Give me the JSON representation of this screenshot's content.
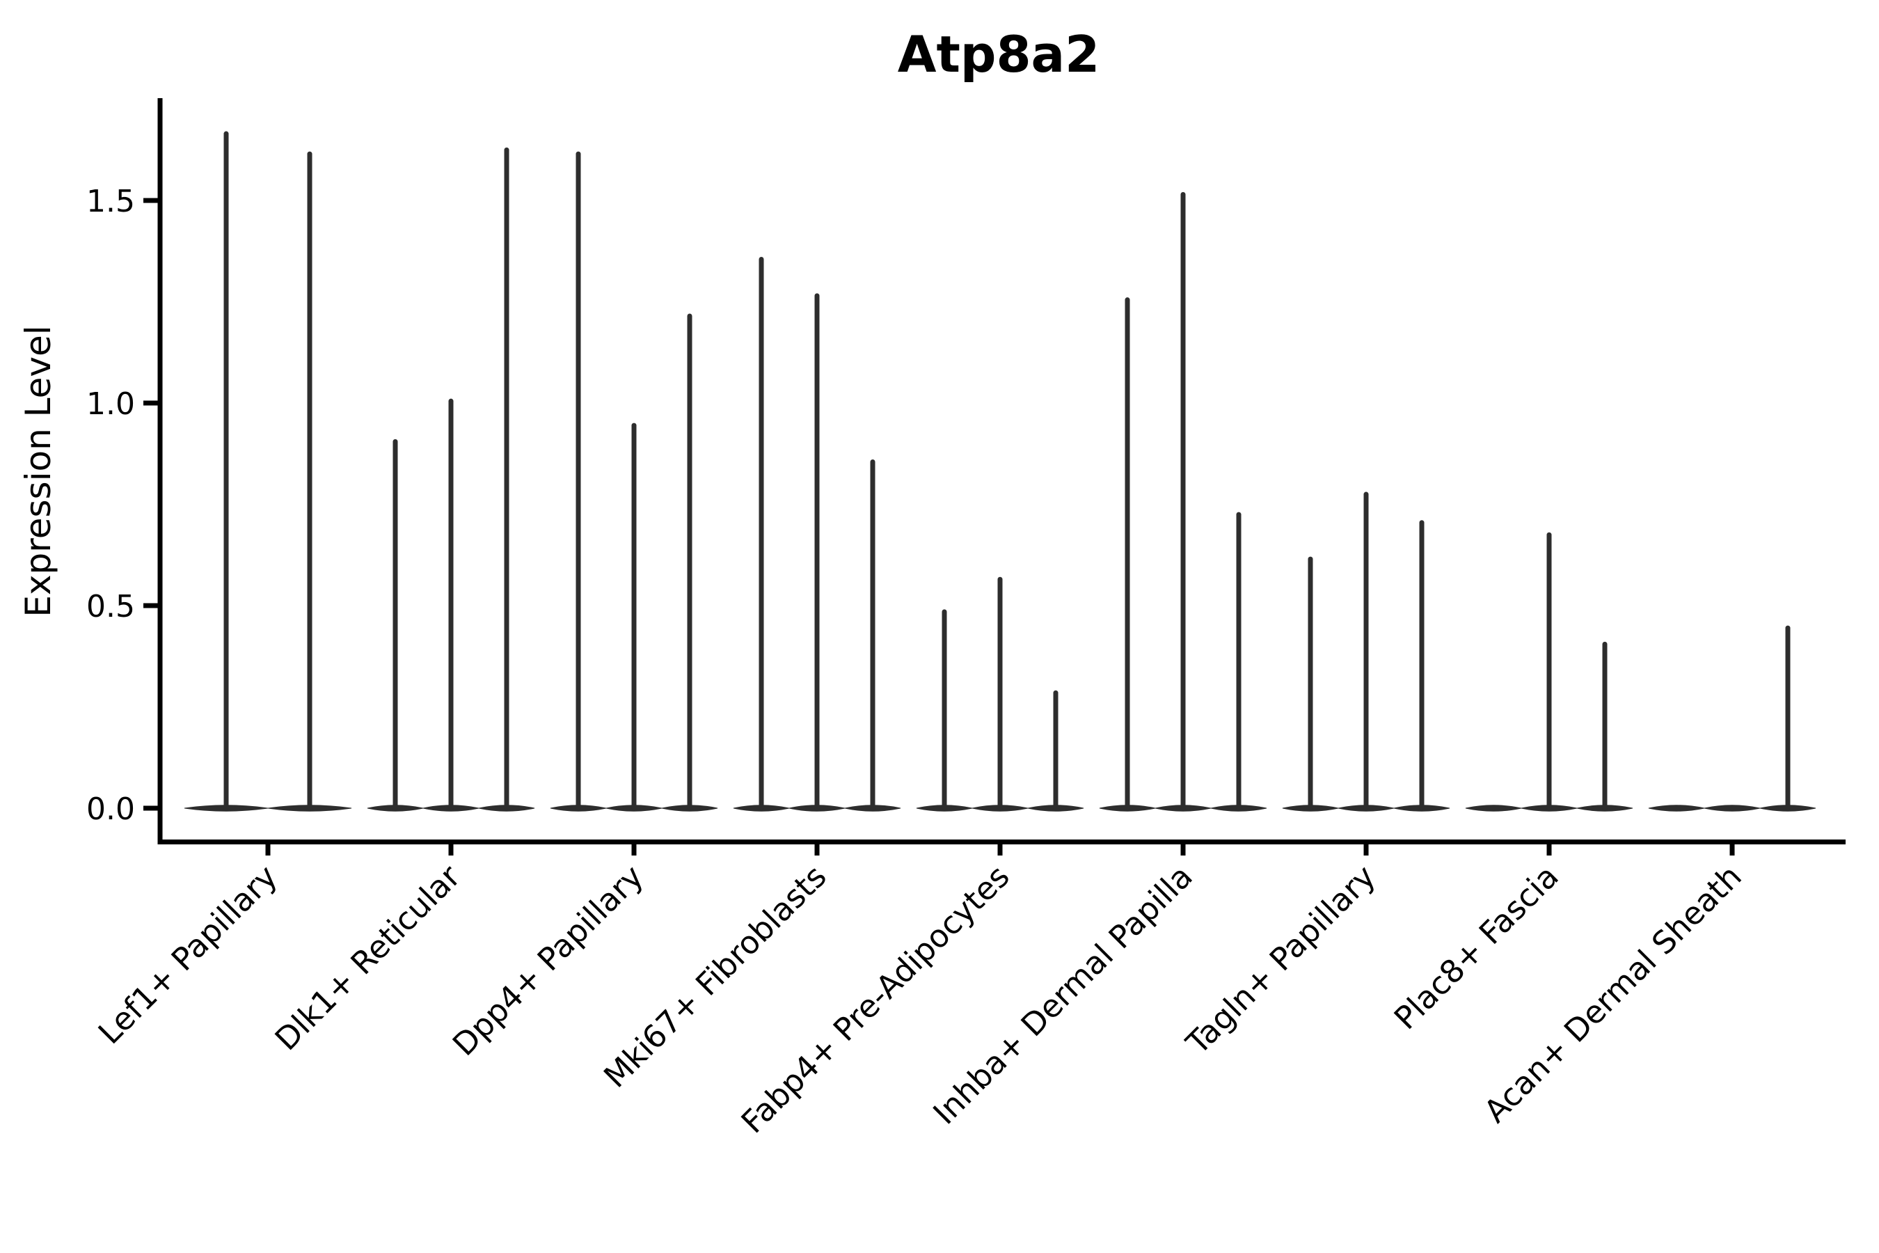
{
  "figure": {
    "title": "Atp8a2",
    "ylabel": "Expression Level"
  },
  "chart_data": {
    "type": "violin",
    "title": "Atp8a2",
    "xlabel": "",
    "ylabel": "Expression Level",
    "ylim": [
      -0.06,
      1.78
    ],
    "ytick_labels": [
      "0.0",
      "0.5",
      "1.0",
      "1.5"
    ],
    "ytick_values": [
      0.0,
      0.5,
      1.0,
      1.5
    ],
    "grid": false,
    "legend": "none",
    "ink_color": "#2d2d2d",
    "axis_color": "#000000",
    "background_color": "#ffffff",
    "categories": [
      "Lef1+ Papillary",
      "Dlk1+ Reticular",
      "Dpp4+ Papillary",
      "Mki67+ Fibroblasts",
      "Fabp4+ Pre-Adipocytes",
      "Inhba+ Dermal Papilla",
      "Tagln+ Papillary",
      "Plac8+ Fascia",
      "Acan+ Dermal Sheath"
    ],
    "groups": [
      {
        "category": "Lef1+ Papillary",
        "violin_maxima": [
          1.67,
          1.62
        ]
      },
      {
        "category": "Dlk1+ Reticular",
        "violin_maxima": [
          0.91,
          1.01,
          1.63
        ]
      },
      {
        "category": "Dpp4+ Papillary",
        "violin_maxima": [
          1.62,
          0.95,
          1.22
        ]
      },
      {
        "category": "Mki67+ Fibroblasts",
        "violin_maxima": [
          1.36,
          1.27,
          0.86
        ]
      },
      {
        "category": "Fabp4+ Pre-Adipocytes",
        "violin_maxima": [
          0.49,
          0.57,
          0.29
        ]
      },
      {
        "category": "Inhba+ Dermal Papilla",
        "violin_maxima": [
          1.26,
          1.52,
          0.73
        ]
      },
      {
        "category": "Tagln+ Papillary",
        "violin_maxima": [
          0.62,
          0.78,
          0.71
        ]
      },
      {
        "category": "Plac8+ Fascia",
        "violin_maxima": [
          0.0,
          0.68,
          0.41
        ]
      },
      {
        "category": "Acan+ Dermal Sheath",
        "violin_maxima": [
          0.0,
          0.0,
          0.45
        ]
      }
    ],
    "note": "All violins are near-zero-width needles: bulk of density at expression 0, thin spike up to violin_maxima."
  }
}
